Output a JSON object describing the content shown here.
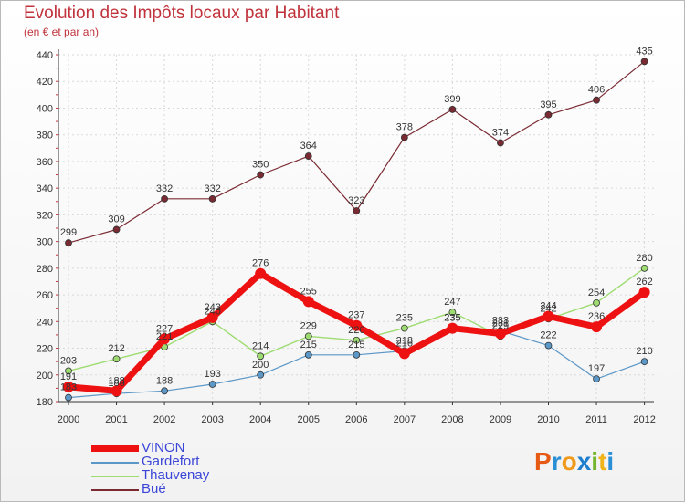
{
  "title": "Evolution des Impôts locaux par Habitant",
  "subtitle": "(en € et par an)",
  "logo": {
    "text": "Proxiti",
    "letters": [
      "P",
      "r",
      "o",
      "x",
      "i",
      "t",
      "i"
    ],
    "colors": [
      "#e65a14",
      "#2b8fd6",
      "#f09a1b",
      "#1f7fcf",
      "#74b52e",
      "#f0b319",
      "#2b8fd6"
    ]
  },
  "chart_data": {
    "type": "line",
    "title": "Evolution des Impôts locaux par Habitant",
    "subtitle": "(en € et par an)",
    "categories": [
      "2000",
      "2001",
      "2002",
      "2003",
      "2004",
      "2005",
      "2006",
      "2007",
      "2008",
      "2009",
      "2010",
      "2011",
      "2012"
    ],
    "ylim": [
      180,
      440
    ],
    "yticks": [
      180,
      200,
      220,
      240,
      260,
      280,
      300,
      320,
      340,
      360,
      380,
      400,
      420,
      440
    ],
    "grid": true,
    "series": [
      {
        "name": "Bué",
        "color": "#7a2a32",
        "width": 1.2,
        "marker": 3.5,
        "values": [
          299,
          309,
          332,
          332,
          350,
          364,
          323,
          378,
          399,
          374,
          395,
          406,
          435
        ]
      },
      {
        "name": "Gardefort",
        "color": "#5b97c7",
        "width": 1.2,
        "marker": 3.5,
        "values": [
          183,
          186,
          188,
          193,
          200,
          215,
          215,
          218,
          235,
          233,
          222,
          197,
          210
        ]
      },
      {
        "name": "Thauvenay",
        "color": "#9edc72",
        "width": 1.4,
        "marker": 3.5,
        "values": [
          203,
          212,
          221,
          240,
          214,
          229,
          226,
          235,
          247,
          229,
          242,
          254,
          280
        ]
      },
      {
        "name": "VINON",
        "color": "#ee1111",
        "width": 7,
        "marker": 6,
        "values": [
          191,
          188,
          227,
          243,
          276,
          255,
          237,
          216,
          235,
          231,
          244,
          236,
          262
        ]
      }
    ],
    "data_labels": [
      {
        "series": "Bué",
        "labels": [
          "299",
          "309",
          "332",
          "332",
          "350",
          "364",
          "323",
          "378",
          "399",
          "374",
          "395",
          "406",
          "435"
        ]
      },
      {
        "series": "Gardefort",
        "labels": [
          "183",
          "186",
          "188",
          "193",
          "200",
          "215",
          "215",
          "218",
          "235",
          "233",
          "222",
          "197",
          "210"
        ]
      },
      {
        "series": "Thauvenay",
        "labels": [
          "203",
          "212",
          "221",
          "240",
          "214",
          "229",
          "226",
          "235",
          "247",
          "229",
          "242",
          "254",
          "280"
        ]
      },
      {
        "series": "VINON",
        "labels": [
          "191",
          "188",
          "227",
          "243",
          "276",
          "255",
          "237",
          "216",
          "235",
          "231",
          "244",
          "236",
          "262"
        ]
      }
    ],
    "legend": [
      "VINON",
      "Gardefort",
      "Thauvenay",
      "Bué"
    ]
  }
}
